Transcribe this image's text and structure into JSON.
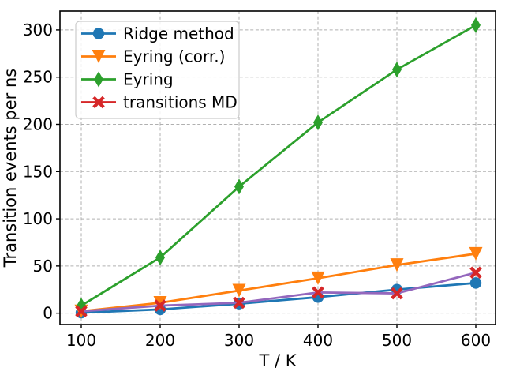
{
  "chart_data": {
    "type": "line",
    "title": "",
    "xlabel": "T / K",
    "ylabel": "Transition events per ns",
    "x": [
      100,
      200,
      300,
      400,
      500,
      600
    ],
    "xticks": [
      100,
      200,
      300,
      400,
      500,
      600
    ],
    "yticks": [
      0,
      50,
      100,
      150,
      200,
      250,
      300
    ],
    "xlim": [
      73,
      625
    ],
    "ylim": [
      -12,
      320
    ],
    "grid": true,
    "legend_position": "upper-left",
    "series": [
      {
        "name": "Ridge method",
        "marker": "circle",
        "color": "#1f77b4",
        "marker_color": "#1f77b4",
        "values": [
          0.5,
          4,
          10,
          17,
          25,
          32
        ]
      },
      {
        "name": "Eyring (corr.)",
        "marker": "triangle-down",
        "color": "#ff7f0e",
        "marker_color": "#ff7f0e",
        "values": [
          2,
          11,
          24,
          37,
          51,
          63
        ]
      },
      {
        "name": "Eyring",
        "marker": "diamond",
        "color": "#2ca02c",
        "marker_color": "#2ca02c",
        "values": [
          8,
          59,
          134,
          202,
          258,
          305
        ]
      },
      {
        "name": "transitions MD",
        "marker": "x",
        "color": "#9467bd",
        "marker_color": "#d62728",
        "legend_color": "#d62728",
        "values": [
          2,
          8,
          11,
          22,
          21,
          43
        ]
      }
    ],
    "colors": {
      "grid": "#b0b0b0",
      "axis": "#000000",
      "background": "#ffffff",
      "legend_border": "#cccccc"
    }
  }
}
